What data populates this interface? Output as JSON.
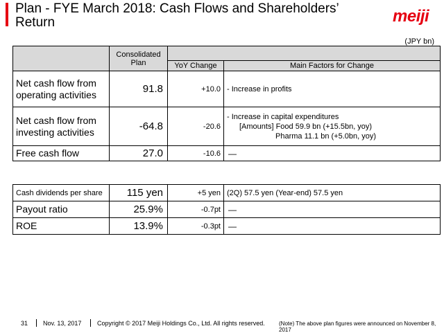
{
  "slide": {
    "title": "Plan - FYE March 2018: Cash Flows and Shareholders’ Return",
    "logo": "meiji",
    "unit": "(JPY bn)"
  },
  "table1": {
    "headers": {
      "plan": "Consolidated Plan",
      "yoy": "YoY Change",
      "factors": "Main Factors for Change"
    },
    "rows": [
      {
        "label": "Net cash flow from operating activities",
        "plan": "91.8",
        "yoy": "+10.0",
        "factors": [
          "- Increase in profits"
        ]
      },
      {
        "label": "Net cash flow from investing activities",
        "plan": "-64.8",
        "yoy": "-20.6",
        "factors": [
          "- Increase in capital expenditures",
          "[Amounts] Food  59.9 bn (+15.5bn, yoy)",
          "Pharma 11.1 bn (+5.0bn, yoy)"
        ]
      },
      {
        "label": "Free cash flow",
        "plan": "27.0",
        "yoy": "-10.6",
        "factors": [
          "—"
        ]
      }
    ]
  },
  "table2": {
    "rows": [
      {
        "label": "Cash dividends per share",
        "plan": "115 yen",
        "yoy": "+5 yen",
        "factors": "(2Q) 57.5 yen  (Year-end) 57.5 yen"
      },
      {
        "label": "Payout ratio",
        "plan": "25.9%",
        "yoy": "-0.7pt",
        "factors": "—"
      },
      {
        "label": "ROE",
        "plan": "13.9%",
        "yoy": "-0.3pt",
        "factors": "—"
      }
    ]
  },
  "footer": {
    "page": "31",
    "date": "Nov. 13, 2017",
    "copyright": "Copyright © 2017 Meiji Holdings Co., Ltd. All rights reserved.",
    "note": "(Note) The above plan figures were announced on November 8, 2017"
  }
}
